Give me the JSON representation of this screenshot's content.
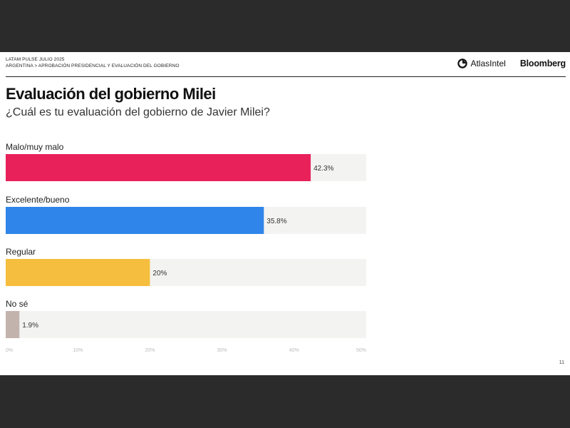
{
  "header": {
    "line1": "LATAM PULSE JULIO 2025",
    "line2": "ARGENTINA > APROBACIÓN PRESIDENCIAL Y EVALUACIÓN DEL GOBIERNO",
    "atlas_logo": "AtlasIntel",
    "bloomberg_logo": "Bloomberg"
  },
  "page_number": "11",
  "colors": {
    "malo": "#e8215a",
    "excelente": "#2f85ea",
    "regular": "#f6be3e",
    "nose": "#c2b3ad",
    "track": "#f3f3f1"
  },
  "chart_data": {
    "type": "bar",
    "orientation": "horizontal",
    "title": "Evaluación del gobierno Milei",
    "subtitle": "¿Cuál es tu evaluación del gobierno de Javier Milei?",
    "categories": [
      "Malo/muy malo",
      "Excelente/bueno",
      "Regular",
      "No sé"
    ],
    "values": [
      42.3,
      35.8,
      20,
      1.9
    ],
    "value_labels": [
      "42.3%",
      "35.8%",
      "20%",
      "1.9%"
    ],
    "xlim": [
      0,
      50
    ],
    "ticks": [
      "0%",
      "10%",
      "20%",
      "30%",
      "40%",
      "50%"
    ],
    "grid": false,
    "legend": "none"
  }
}
